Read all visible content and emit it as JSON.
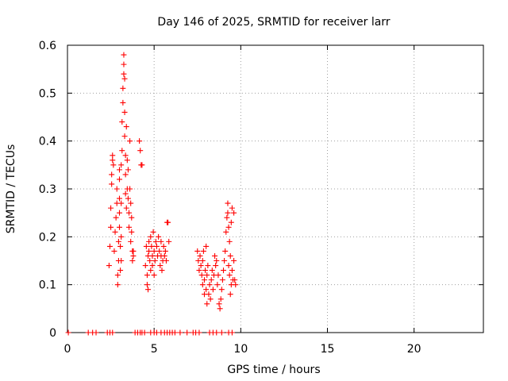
{
  "chart_data": {
    "type": "scatter",
    "title": "Day 146 of 2025, SRMTID for receiver larr",
    "xlabel": "GPS time / hours",
    "ylabel": "SRMTID / TECUs",
    "xlim": [
      0,
      24
    ],
    "ylim": [
      0,
      0.6
    ],
    "xticks": [
      0,
      5,
      10,
      15,
      20
    ],
    "yticks": [
      0,
      0.1,
      0.2,
      0.3,
      0.4,
      0.5,
      0.6
    ],
    "grid": true,
    "marker": "plus",
    "series": [
      {
        "name": "SRMTID",
        "color": "#ff0000",
        "points": [
          [
            0.05,
            0
          ],
          [
            1.2,
            0
          ],
          [
            1.45,
            0
          ],
          [
            1.65,
            0
          ],
          [
            2.3,
            0
          ],
          [
            2.45,
            0
          ],
          [
            2.6,
            0
          ],
          [
            3.9,
            0
          ],
          [
            4.05,
            0
          ],
          [
            4.2,
            0
          ],
          [
            4.3,
            0
          ],
          [
            4.45,
            0
          ],
          [
            4.8,
            0
          ],
          [
            5.0,
            0
          ],
          [
            5.15,
            0
          ],
          [
            5.4,
            0
          ],
          [
            5.6,
            0
          ],
          [
            5.75,
            0
          ],
          [
            5.9,
            0
          ],
          [
            6.05,
            0
          ],
          [
            6.2,
            0
          ],
          [
            6.5,
            0
          ],
          [
            6.9,
            0
          ],
          [
            7.25,
            0
          ],
          [
            7.4,
            0
          ],
          [
            7.6,
            0
          ],
          [
            8.2,
            0
          ],
          [
            8.4,
            0
          ],
          [
            8.6,
            0
          ],
          [
            8.9,
            0
          ],
          [
            9.3,
            0
          ],
          [
            9.5,
            0
          ],
          [
            2.4,
            0.14
          ],
          [
            2.45,
            0.18
          ],
          [
            2.5,
            0.22
          ],
          [
            2.5,
            0.26
          ],
          [
            2.55,
            0.31
          ],
          [
            2.55,
            0.33
          ],
          [
            2.6,
            0.36
          ],
          [
            2.6,
            0.37
          ],
          [
            2.65,
            0.35
          ],
          [
            2.7,
            0.17
          ],
          [
            2.75,
            0.21
          ],
          [
            2.8,
            0.24
          ],
          [
            2.85,
            0.27
          ],
          [
            2.85,
            0.3
          ],
          [
            2.9,
            0.1
          ],
          [
            2.9,
            0.12
          ],
          [
            2.95,
            0.15
          ],
          [
            2.95,
            0.19
          ],
          [
            3.0,
            0.22
          ],
          [
            3.0,
            0.25
          ],
          [
            3.0,
            0.28
          ],
          [
            3.0,
            0.32
          ],
          [
            3.0,
            0.34
          ],
          [
            3.05,
            0.18
          ],
          [
            3.05,
            0.13
          ],
          [
            3.1,
            0.15
          ],
          [
            3.1,
            0.2
          ],
          [
            3.1,
            0.27
          ],
          [
            3.1,
            0.35
          ],
          [
            3.15,
            0.38
          ],
          [
            3.15,
            0.44
          ],
          [
            3.2,
            0.48
          ],
          [
            3.2,
            0.51
          ],
          [
            3.25,
            0.54
          ],
          [
            3.25,
            0.56
          ],
          [
            3.25,
            0.58
          ],
          [
            3.3,
            0.53
          ],
          [
            3.3,
            0.46
          ],
          [
            3.3,
            0.41
          ],
          [
            3.35,
            0.37
          ],
          [
            3.35,
            0.33
          ],
          [
            3.35,
            0.29
          ],
          [
            3.4,
            0.43
          ],
          [
            3.4,
            0.26
          ],
          [
            3.45,
            0.36
          ],
          [
            3.45,
            0.3
          ],
          [
            3.5,
            0.34
          ],
          [
            3.5,
            0.28
          ],
          [
            3.55,
            0.25
          ],
          [
            3.55,
            0.22
          ],
          [
            3.6,
            0.3
          ],
          [
            3.6,
            0.4
          ],
          [
            3.65,
            0.19
          ],
          [
            3.65,
            0.27
          ],
          [
            3.7,
            0.21
          ],
          [
            3.7,
            0.24
          ],
          [
            3.75,
            0.17
          ],
          [
            3.75,
            0.15
          ],
          [
            3.8,
            0.16
          ],
          [
            3.8,
            0.17
          ],
          [
            4.15,
            0.4
          ],
          [
            4.2,
            0.38
          ],
          [
            4.25,
            0.35
          ],
          [
            4.3,
            0.35
          ],
          [
            4.5,
            0.14
          ],
          [
            4.55,
            0.18
          ],
          [
            4.6,
            0.1
          ],
          [
            4.6,
            0.12
          ],
          [
            4.65,
            0.09
          ],
          [
            4.65,
            0.16
          ],
          [
            4.7,
            0.19
          ],
          [
            4.7,
            0.17
          ],
          [
            4.75,
            0.15
          ],
          [
            4.8,
            0.13
          ],
          [
            4.8,
            0.2
          ],
          [
            4.85,
            0.18
          ],
          [
            4.9,
            0.16
          ],
          [
            4.9,
            0.14
          ],
          [
            4.95,
            0.21
          ],
          [
            5.0,
            0.12
          ],
          [
            5.0,
            0.17
          ],
          [
            5.05,
            0.15
          ],
          [
            5.1,
            0.19
          ],
          [
            5.15,
            0.18
          ],
          [
            5.2,
            0.16
          ],
          [
            5.25,
            0.2
          ],
          [
            5.3,
            0.17
          ],
          [
            5.35,
            0.14
          ],
          [
            5.4,
            0.19
          ],
          [
            5.4,
            0.16
          ],
          [
            5.45,
            0.13
          ],
          [
            5.5,
            0.15
          ],
          [
            5.55,
            0.18
          ],
          [
            5.6,
            0.16
          ],
          [
            5.65,
            0.17
          ],
          [
            5.7,
            0.15
          ],
          [
            5.75,
            0.23
          ],
          [
            5.8,
            0.23
          ],
          [
            5.85,
            0.19
          ],
          [
            7.5,
            0.17
          ],
          [
            7.55,
            0.15
          ],
          [
            7.6,
            0.13
          ],
          [
            7.65,
            0.16
          ],
          [
            7.7,
            0.14
          ],
          [
            7.75,
            0.12
          ],
          [
            7.8,
            0.1
          ],
          [
            7.8,
            0.15
          ],
          [
            7.85,
            0.17
          ],
          [
            7.9,
            0.11
          ],
          [
            7.9,
            0.08
          ],
          [
            7.95,
            0.13
          ],
          [
            8.0,
            0.09
          ],
          [
            8.0,
            0.18
          ],
          [
            8.05,
            0.06
          ],
          [
            8.05,
            0.12
          ],
          [
            8.1,
            0.14
          ],
          [
            8.15,
            0.08
          ],
          [
            8.2,
            0.1
          ],
          [
            8.25,
            0.07
          ],
          [
            8.3,
            0.11
          ],
          [
            8.35,
            0.13
          ],
          [
            8.4,
            0.09
          ],
          [
            8.45,
            0.12
          ],
          [
            8.5,
            0.16
          ],
          [
            8.55,
            0.14
          ],
          [
            8.6,
            0.15
          ],
          [
            8.65,
            0.1
          ],
          [
            8.7,
            0.12
          ],
          [
            8.75,
            0.06
          ],
          [
            8.8,
            0.05
          ],
          [
            8.85,
            0.07
          ],
          [
            8.9,
            0.09
          ],
          [
            8.95,
            0.11
          ],
          [
            9.0,
            0.13
          ],
          [
            9.05,
            0.15
          ],
          [
            9.1,
            0.17
          ],
          [
            9.15,
            0.21
          ],
          [
            9.2,
            0.24
          ],
          [
            9.25,
            0.27
          ],
          [
            9.25,
            0.25
          ],
          [
            9.3,
            0.22
          ],
          [
            9.3,
            0.14
          ],
          [
            9.35,
            0.12
          ],
          [
            9.35,
            0.19
          ],
          [
            9.4,
            0.08
          ],
          [
            9.4,
            0.16
          ],
          [
            9.45,
            0.1
          ],
          [
            9.45,
            0.23
          ],
          [
            9.5,
            0.26
          ],
          [
            9.5,
            0.13
          ],
          [
            9.55,
            0.11
          ],
          [
            9.6,
            0.25
          ],
          [
            9.6,
            0.15
          ],
          [
            9.65,
            0.11
          ],
          [
            9.7,
            0.1
          ]
        ]
      }
    ]
  }
}
